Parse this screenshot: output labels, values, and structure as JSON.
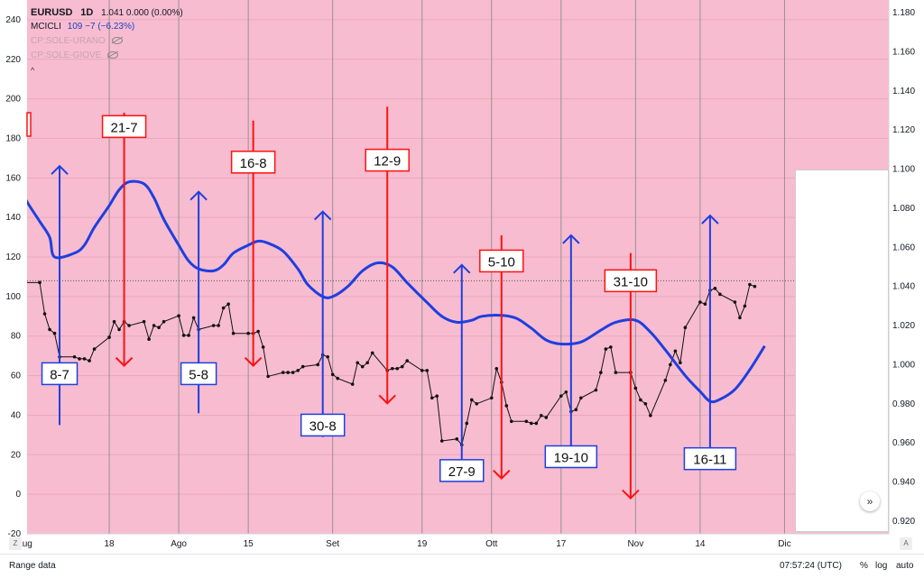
{
  "legend": {
    "symbol": "EURUSD",
    "interval": "1D",
    "ohlc": "1.041  0.000 (0.00%)",
    "indicator_name": "MCICLI",
    "indicator_values": "109  −7 (−6.23%)",
    "layer1": "CP:SOLE-URANO",
    "layer2": "CP:SOLE-GIOVE",
    "collapse": "^"
  },
  "bottom": {
    "range_label": "Range data",
    "time": "07:57:24 (UTC)",
    "percent": "%",
    "log": "log",
    "auto": "auto",
    "z_button": "Z",
    "a_button": "A"
  },
  "scroll_button": "»",
  "chart_data": {
    "type": "line",
    "background": "#f7bccf",
    "left_axis": {
      "min": -20,
      "max": 250,
      "ticks": [
        -20,
        0,
        20,
        40,
        60,
        80,
        100,
        120,
        140,
        160,
        180,
        200,
        220,
        240
      ]
    },
    "right_axis": {
      "min": 0.9135,
      "max": 1.1865,
      "ticks": [
        "0.920",
        "0.940",
        "0.960",
        "0.980",
        "1.000",
        "1.020",
        "1.040",
        "1.060",
        "1.080",
        "1.100",
        "1.120",
        "1.140",
        "1.160",
        "1.180"
      ]
    },
    "x_axis": {
      "start": "2022-06-26",
      "end": "2022-12-22",
      "labels": [
        {
          "text": "Lug",
          "date": "2022-07-01"
        },
        {
          "text": "18",
          "date": "2022-07-18"
        },
        {
          "text": "Ago",
          "date": "2022-08-01"
        },
        {
          "text": "15",
          "date": "2022-08-15"
        },
        {
          "text": "Set",
          "date": "2022-09-01"
        },
        {
          "text": "19",
          "date": "2022-09-19"
        },
        {
          "text": "Ott",
          "date": "2022-10-03"
        },
        {
          "text": "17",
          "date": "2022-10-17"
        },
        {
          "text": "Nov",
          "date": "2022-11-01"
        },
        {
          "text": "14",
          "date": "2022-11-14"
        },
        {
          "text": "Dic",
          "date": "2022-12-01"
        }
      ]
    },
    "reference_line": 108,
    "series": [
      {
        "axis": "right",
        "color": "#111111",
        "points": [
          [
            "2022-06-27",
            1.058
          ],
          [
            "2022-06-28",
            1.052
          ],
          [
            "2022-06-29",
            1.044
          ],
          [
            "2022-06-30",
            1.048
          ],
          [
            "2022-07-01",
            1.042
          ],
          [
            "2022-07-04",
            1.042
          ],
          [
            "2022-07-05",
            1.026
          ],
          [
            "2022-07-06",
            1.018
          ],
          [
            "2022-07-07",
            1.016
          ],
          [
            "2022-07-08",
            1.004
          ],
          [
            "2022-07-11",
            1.004
          ],
          [
            "2022-07-12",
            1.003
          ],
          [
            "2022-07-13",
            1.003
          ],
          [
            "2022-07-14",
            1.002
          ],
          [
            "2022-07-15",
            1.008
          ],
          [
            "2022-07-18",
            1.014
          ],
          [
            "2022-07-19",
            1.022
          ],
          [
            "2022-07-20",
            1.018
          ],
          [
            "2022-07-21",
            1.022
          ],
          [
            "2022-07-22",
            1.02
          ],
          [
            "2022-07-25",
            1.022
          ],
          [
            "2022-07-26",
            1.013
          ],
          [
            "2022-07-27",
            1.02
          ],
          [
            "2022-07-28",
            1.019
          ],
          [
            "2022-07-29",
            1.022
          ],
          [
            "2022-08-01",
            1.025
          ],
          [
            "2022-08-02",
            1.015
          ],
          [
            "2022-08-03",
            1.015
          ],
          [
            "2022-08-04",
            1.024
          ],
          [
            "2022-08-05",
            1.018
          ],
          [
            "2022-08-08",
            1.02
          ],
          [
            "2022-08-09",
            1.02
          ],
          [
            "2022-08-10",
            1.029
          ],
          [
            "2022-08-11",
            1.031
          ],
          [
            "2022-08-12",
            1.016
          ],
          [
            "2022-08-15",
            1.016
          ],
          [
            "2022-08-16",
            1.016
          ],
          [
            "2022-08-17",
            1.017
          ],
          [
            "2022-08-18",
            1.009
          ],
          [
            "2022-08-19",
            0.994
          ],
          [
            "2022-08-22",
            0.996
          ],
          [
            "2022-08-23",
            0.996
          ],
          [
            "2022-08-24",
            0.996
          ],
          [
            "2022-08-25",
            0.997
          ],
          [
            "2022-08-26",
            0.999
          ],
          [
            "2022-08-29",
            1.0
          ],
          [
            "2022-08-30",
            1.005
          ],
          [
            "2022-08-31",
            1.004
          ],
          [
            "2022-09-01",
            0.995
          ],
          [
            "2022-09-02",
            0.993
          ],
          [
            "2022-09-05",
            0.99
          ],
          [
            "2022-09-06",
            1.001
          ],
          [
            "2022-09-07",
            0.999
          ],
          [
            "2022-09-08",
            1.001
          ],
          [
            "2022-09-09",
            1.006
          ],
          [
            "2022-09-12",
            0.997
          ],
          [
            "2022-09-13",
            0.998
          ],
          [
            "2022-09-14",
            0.998
          ],
          [
            "2022-09-15",
            0.999
          ],
          [
            "2022-09-16",
            1.002
          ],
          [
            "2022-09-19",
            0.997
          ],
          [
            "2022-09-20",
            0.997
          ],
          [
            "2022-09-21",
            0.983
          ],
          [
            "2022-09-22",
            0.984
          ],
          [
            "2022-09-23",
            0.961
          ],
          [
            "2022-09-26",
            0.962
          ],
          [
            "2022-09-27",
            0.959
          ],
          [
            "2022-09-28",
            0.97
          ],
          [
            "2022-09-29",
            0.982
          ],
          [
            "2022-09-30",
            0.98
          ],
          [
            "2022-10-03",
            0.983
          ],
          [
            "2022-10-04",
            0.998
          ],
          [
            "2022-10-05",
            0.991
          ],
          [
            "2022-10-06",
            0.979
          ],
          [
            "2022-10-07",
            0.971
          ],
          [
            "2022-10-10",
            0.971
          ],
          [
            "2022-10-11",
            0.97
          ],
          [
            "2022-10-12",
            0.97
          ],
          [
            "2022-10-13",
            0.974
          ],
          [
            "2022-10-14",
            0.973
          ],
          [
            "2022-10-17",
            0.984
          ],
          [
            "2022-10-18",
            0.986
          ],
          [
            "2022-10-19",
            0.976
          ],
          [
            "2022-10-20",
            0.977
          ],
          [
            "2022-10-21",
            0.983
          ],
          [
            "2022-10-24",
            0.987
          ],
          [
            "2022-10-25",
            0.996
          ],
          [
            "2022-10-26",
            1.008
          ],
          [
            "2022-10-27",
            1.009
          ],
          [
            "2022-10-28",
            0.996
          ],
          [
            "2022-10-31",
            0.996
          ],
          [
            "2022-11-01",
            0.988
          ],
          [
            "2022-11-02",
            0.982
          ],
          [
            "2022-11-03",
            0.98
          ],
          [
            "2022-11-04",
            0.974
          ],
          [
            "2022-11-07",
            0.992
          ],
          [
            "2022-11-08",
            1.0
          ],
          [
            "2022-11-09",
            1.007
          ],
          [
            "2022-11-10",
            1.001
          ],
          [
            "2022-11-11",
            1.019
          ],
          [
            "2022-11-14",
            1.032
          ],
          [
            "2022-11-15",
            1.031
          ],
          [
            "2022-11-16",
            1.038
          ],
          [
            "2022-11-17",
            1.039
          ],
          [
            "2022-11-18",
            1.036
          ],
          [
            "2022-11-21",
            1.032
          ],
          [
            "2022-11-22",
            1.024
          ],
          [
            "2022-11-23",
            1.03
          ],
          [
            "2022-11-24",
            1.041
          ],
          [
            "2022-11-25",
            1.04
          ]
        ]
      },
      {
        "name": "MCICLI",
        "axis": "left",
        "color": "#1e3fe0",
        "points": [
          [
            "2022-06-27",
            174
          ],
          [
            "2022-06-29",
            163
          ],
          [
            "2022-07-01",
            150
          ],
          [
            "2022-07-04",
            138
          ],
          [
            "2022-07-06",
            130
          ],
          [
            "2022-07-07",
            120
          ],
          [
            "2022-07-11",
            122
          ],
          [
            "2022-07-13",
            126
          ],
          [
            "2022-07-15",
            135
          ],
          [
            "2022-07-18",
            146
          ],
          [
            "2022-07-20",
            154
          ],
          [
            "2022-07-22",
            158
          ],
          [
            "2022-07-25",
            157
          ],
          [
            "2022-07-27",
            150
          ],
          [
            "2022-07-29",
            139
          ],
          [
            "2022-08-01",
            126
          ],
          [
            "2022-08-03",
            118
          ],
          [
            "2022-08-05",
            114
          ],
          [
            "2022-08-08",
            113
          ],
          [
            "2022-08-10",
            116
          ],
          [
            "2022-08-12",
            122
          ],
          [
            "2022-08-15",
            126
          ],
          [
            "2022-08-17",
            128
          ],
          [
            "2022-08-19",
            127
          ],
          [
            "2022-08-22",
            123
          ],
          [
            "2022-08-25",
            114
          ],
          [
            "2022-08-27",
            106
          ],
          [
            "2022-08-30",
            100
          ],
          [
            "2022-09-01",
            100
          ],
          [
            "2022-09-04",
            105
          ],
          [
            "2022-09-07",
            113
          ],
          [
            "2022-09-10",
            117
          ],
          [
            "2022-09-13",
            115
          ],
          [
            "2022-09-16",
            107
          ],
          [
            "2022-09-20",
            97
          ],
          [
            "2022-09-23",
            90
          ],
          [
            "2022-09-26",
            87
          ],
          [
            "2022-09-29",
            88
          ],
          [
            "2022-10-01",
            90
          ],
          [
            "2022-10-05",
            90.5
          ],
          [
            "2022-10-08",
            89
          ],
          [
            "2022-10-11",
            84
          ],
          [
            "2022-10-14",
            78
          ],
          [
            "2022-10-17",
            76
          ],
          [
            "2022-10-21",
            77
          ],
          [
            "2022-10-25",
            83
          ],
          [
            "2022-10-28",
            87
          ],
          [
            "2022-11-01",
            88
          ],
          [
            "2022-11-04",
            82
          ],
          [
            "2022-11-07",
            73
          ],
          [
            "2022-11-11",
            60
          ],
          [
            "2022-11-14",
            52
          ],
          [
            "2022-11-16",
            47
          ],
          [
            "2022-11-18",
            48
          ],
          [
            "2022-11-21",
            53
          ],
          [
            "2022-11-24",
            63
          ],
          [
            "2022-11-27",
            75
          ]
        ]
      }
    ],
    "arrows": [
      {
        "label": "8-7",
        "date": "2022-07-08",
        "direction": "up",
        "from": 35,
        "to": 166,
        "box_at": 61,
        "color": "#1e3fe0"
      },
      {
        "label": "21-7",
        "date": "2022-07-21",
        "direction": "down",
        "from": 193,
        "to": 65,
        "box_at": 186,
        "color": "#ff1111"
      },
      {
        "label": "5-8",
        "date": "2022-08-05",
        "direction": "up",
        "from": 41,
        "to": 153,
        "box_at": 61,
        "color": "#1e3fe0"
      },
      {
        "label": "16-8",
        "date": "2022-08-16",
        "direction": "down",
        "from": 189,
        "to": 65,
        "box_at": 168,
        "color": "#ff1111"
      },
      {
        "label": "30-8",
        "date": "2022-08-30",
        "direction": "up",
        "from": 29,
        "to": 143,
        "box_at": 35,
        "color": "#1e3fe0"
      },
      {
        "label": "12-9",
        "date": "2022-09-12",
        "direction": "down",
        "from": 196,
        "to": 46,
        "box_at": 169,
        "color": "#ff1111"
      },
      {
        "label": "27-9",
        "date": "2022-09-27",
        "direction": "up",
        "from": 14,
        "to": 116,
        "box_at": 12,
        "color": "#1e3fe0"
      },
      {
        "label": "5-10",
        "date": "2022-10-05",
        "direction": "down",
        "from": 131,
        "to": 8,
        "box_at": 118,
        "color": "#ff1111"
      },
      {
        "label": "19-10",
        "date": "2022-10-19",
        "direction": "up",
        "from": 22,
        "to": 131,
        "box_at": 19,
        "color": "#1e3fe0"
      },
      {
        "label": "31-10",
        "date": "2022-10-31",
        "direction": "down",
        "from": 122,
        "to": -2,
        "box_at": 108,
        "color": "#ff1111"
      },
      {
        "label": "16-11",
        "date": "2022-11-16",
        "direction": "up",
        "from": 18,
        "to": 141,
        "box_at": 18,
        "color": "#1e3fe0"
      }
    ]
  }
}
